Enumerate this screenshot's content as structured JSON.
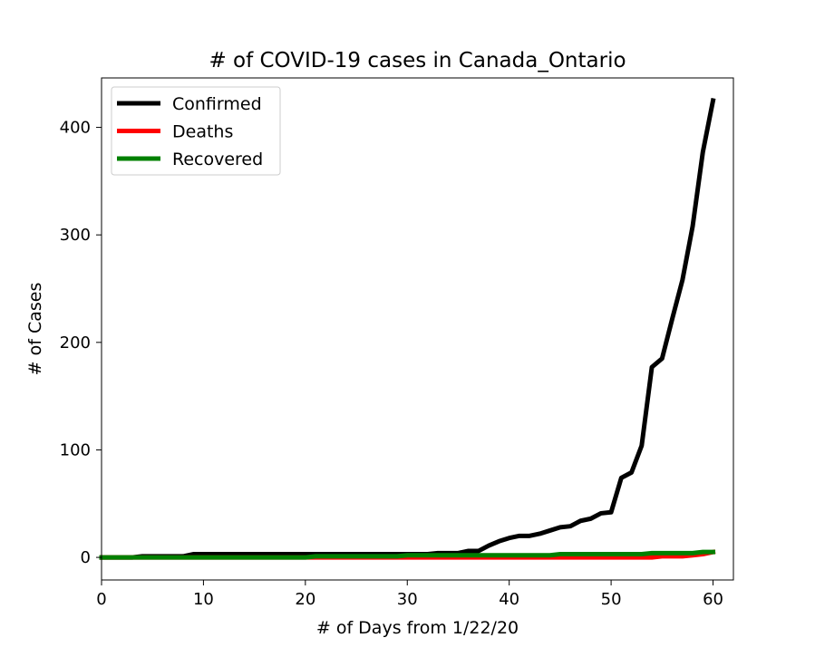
{
  "chart_data": {
    "type": "line",
    "title": "# of COVID-19 cases in Canada_Ontario",
    "xlabel": "# of Days from 1/22/20",
    "ylabel": "# of Cases",
    "xlim": [
      0,
      62
    ],
    "ylim": [
      -21,
      446
    ],
    "xticks": [
      0,
      10,
      20,
      30,
      40,
      50,
      60
    ],
    "yticks": [
      0,
      100,
      200,
      300,
      400
    ],
    "grid": false,
    "legend_position": "top-left",
    "x": [
      0,
      1,
      2,
      3,
      4,
      5,
      6,
      7,
      8,
      9,
      10,
      11,
      12,
      13,
      14,
      15,
      16,
      17,
      18,
      19,
      20,
      21,
      22,
      23,
      24,
      25,
      26,
      27,
      28,
      29,
      30,
      31,
      32,
      33,
      34,
      35,
      36,
      37,
      38,
      39,
      40,
      41,
      42,
      43,
      44,
      45,
      46,
      47,
      48,
      49,
      50,
      51,
      52,
      53,
      54,
      55,
      56,
      57,
      58,
      59,
      60
    ],
    "series": [
      {
        "name": "Confirmed",
        "color": "#000000",
        "values": [
          0,
          0,
          0,
          0,
          1,
          1,
          1,
          1,
          1,
          3,
          3,
          3,
          3,
          3,
          3,
          3,
          3,
          3,
          3,
          3,
          3,
          3,
          3,
          3,
          3,
          3,
          3,
          3,
          3,
          3,
          3,
          3,
          3,
          4,
          4,
          4,
          6,
          6,
          11,
          15,
          18,
          20,
          20,
          22,
          25,
          28,
          29,
          34,
          36,
          41,
          42,
          74,
          79,
          104,
          177,
          185,
          222,
          258,
          308,
          377,
          425
        ]
      },
      {
        "name": "Deaths",
        "color": "#ff0000",
        "values": [
          0,
          0,
          0,
          0,
          0,
          0,
          0,
          0,
          0,
          0,
          0,
          0,
          0,
          0,
          0,
          0,
          0,
          0,
          0,
          0,
          0,
          0,
          0,
          0,
          0,
          0,
          0,
          0,
          0,
          0,
          0,
          0,
          0,
          0,
          0,
          0,
          0,
          0,
          0,
          0,
          0,
          0,
          0,
          0,
          0,
          0,
          0,
          0,
          0,
          0,
          0,
          0,
          0,
          0,
          0,
          1,
          1,
          1,
          2,
          3,
          5
        ]
      },
      {
        "name": "Recovered",
        "color": "#008000",
        "values": [
          0,
          0,
          0,
          0,
          0,
          0,
          0,
          0,
          0,
          0,
          0,
          0,
          0,
          0,
          0,
          0,
          0,
          0,
          0,
          0,
          0,
          1,
          1,
          1,
          1,
          1,
          1,
          1,
          1,
          1,
          2,
          2,
          2,
          2,
          2,
          2,
          2,
          2,
          2,
          2,
          2,
          2,
          2,
          2,
          2,
          3,
          3,
          3,
          3,
          3,
          3,
          3,
          3,
          3,
          4,
          4,
          4,
          4,
          4,
          5,
          5
        ]
      }
    ]
  }
}
